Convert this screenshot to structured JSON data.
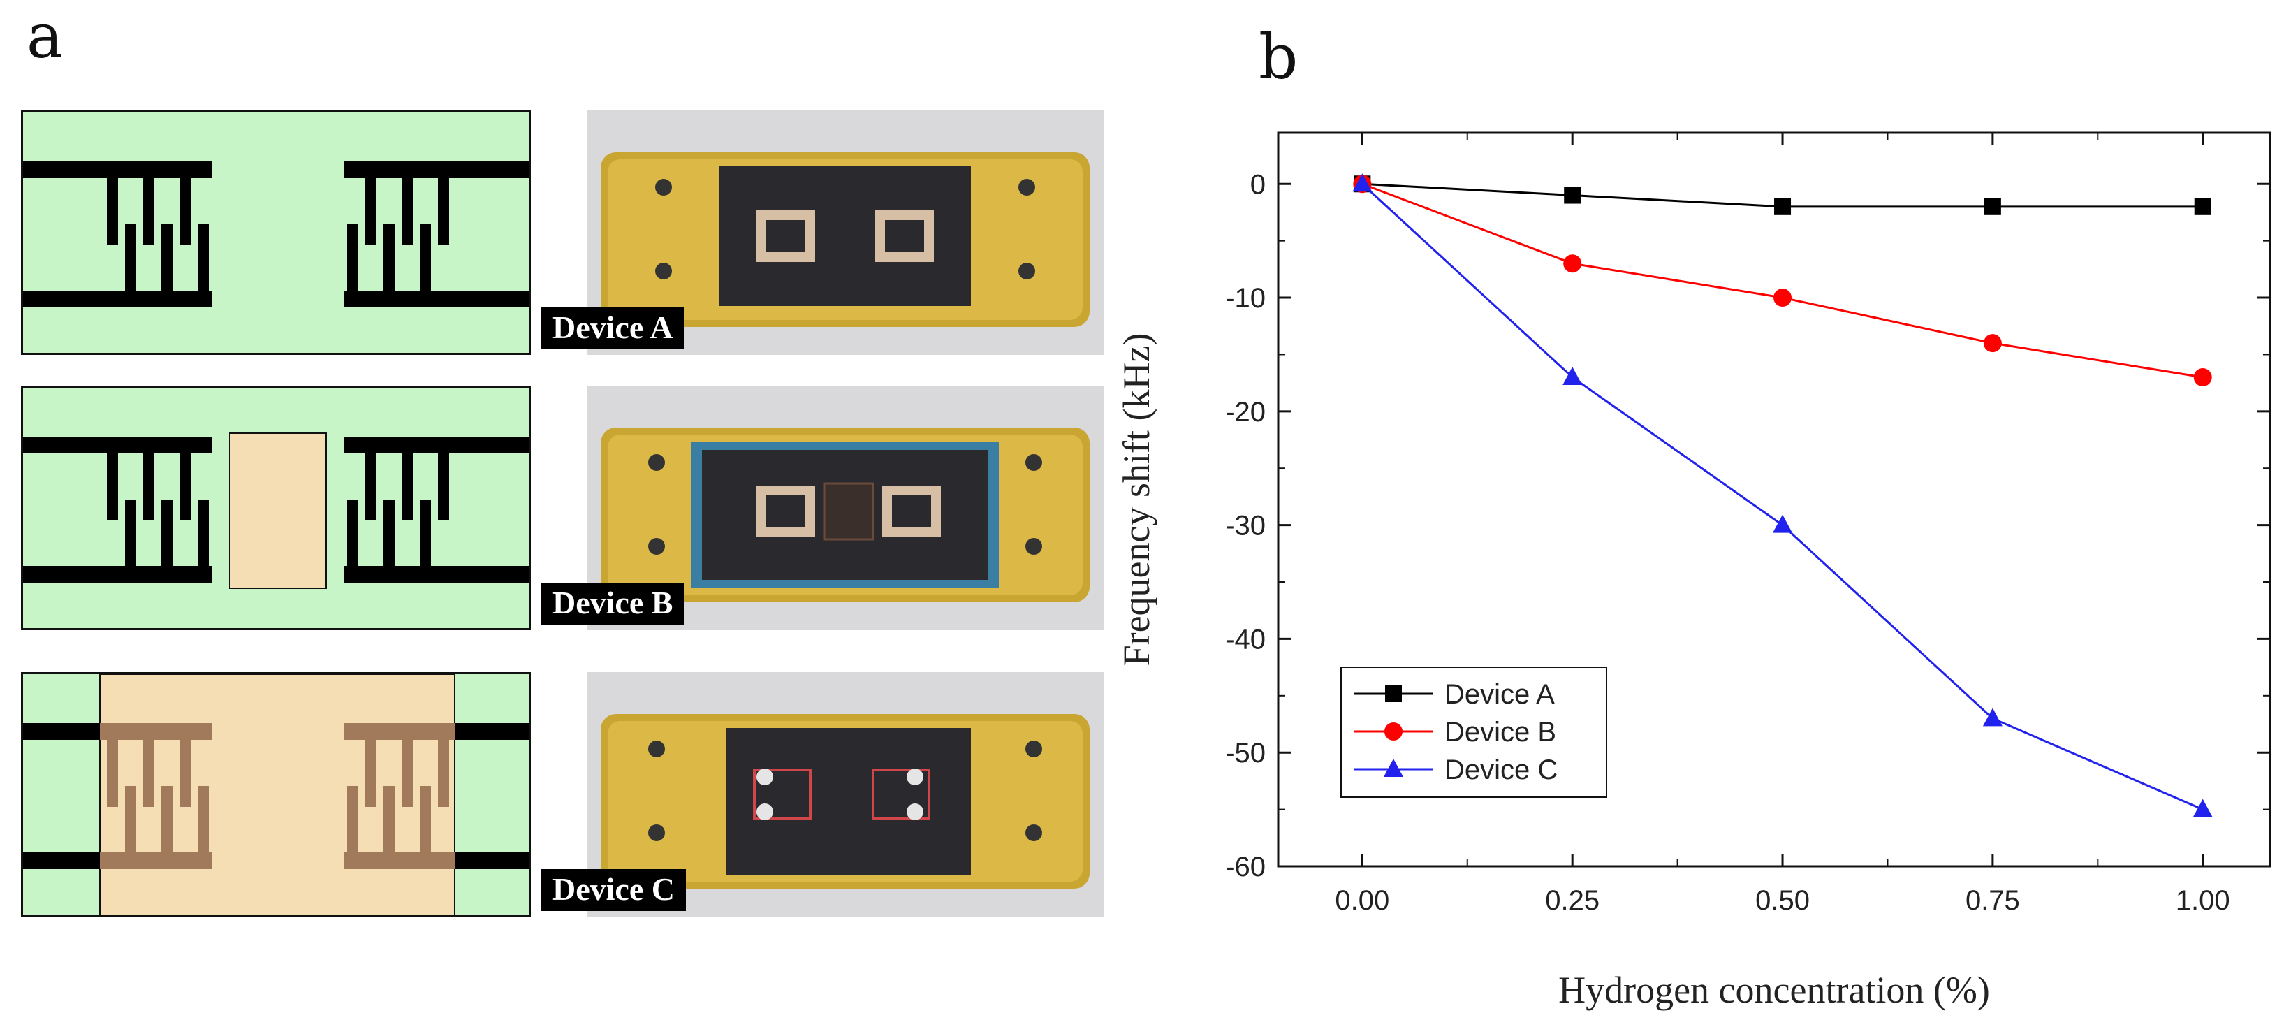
{
  "panel_a": {
    "letter": "a",
    "devices": [
      {
        "label": "Device A",
        "design": "electrodes-only"
      },
      {
        "label": "Device B",
        "design": "center-film"
      },
      {
        "label": "Device C",
        "design": "full-film"
      }
    ],
    "colors": {
      "substrate": "#c7f5c7",
      "film": "#f5deb3",
      "electrode": "#000000",
      "electrode_under_film": "#a07a5a",
      "mount": "#c9a531",
      "chip": "#2a2a2e"
    }
  },
  "panel_b": {
    "letter": "b"
  },
  "chart_data": {
    "type": "line",
    "xlabel": "Hydrogen concentration (%)",
    "ylabel": "Frequency shift (kHz)",
    "x": [
      0.0,
      0.25,
      0.5,
      0.75,
      1.0
    ],
    "x_tick_labels": [
      "0.00",
      "0.25",
      "0.50",
      "0.75",
      "1.00"
    ],
    "y_ticks": [
      0,
      -10,
      -20,
      -30,
      -40,
      -50,
      -60
    ],
    "xlim": [
      -0.1,
      1.08
    ],
    "ylim": [
      -60,
      4.5
    ],
    "grid": false,
    "legend_position": "bottom-left",
    "series": [
      {
        "name": "Device A",
        "color": "#000000",
        "marker": "square",
        "values": [
          0,
          -1,
          -2,
          -2,
          -2
        ]
      },
      {
        "name": "Device B",
        "color": "#ff0000",
        "marker": "circle",
        "values": [
          0,
          -7,
          -10,
          -14,
          -17
        ]
      },
      {
        "name": "Device C",
        "color": "#2222ee",
        "marker": "triangle",
        "values": [
          0,
          -17,
          -30,
          -47,
          -55
        ]
      }
    ]
  }
}
